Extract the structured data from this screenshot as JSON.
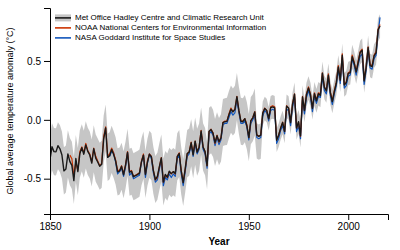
{
  "chart_data": {
    "type": "line",
    "xlabel": "Year",
    "ylabel": "Global average temperature anomaly (°C)",
    "x": [
      1850,
      1851,
      1852,
      1853,
      1854,
      1855,
      1856,
      1857,
      1858,
      1859,
      1860,
      1861,
      1862,
      1863,
      1864,
      1865,
      1866,
      1867,
      1868,
      1869,
      1870,
      1871,
      1872,
      1873,
      1874,
      1875,
      1876,
      1877,
      1878,
      1879,
      1880,
      1881,
      1882,
      1883,
      1884,
      1885,
      1886,
      1887,
      1888,
      1889,
      1890,
      1891,
      1892,
      1893,
      1894,
      1895,
      1896,
      1897,
      1898,
      1899,
      1900,
      1901,
      1902,
      1903,
      1904,
      1905,
      1906,
      1907,
      1908,
      1909,
      1910,
      1911,
      1912,
      1913,
      1914,
      1915,
      1916,
      1917,
      1918,
      1919,
      1920,
      1921,
      1922,
      1923,
      1924,
      1925,
      1926,
      1927,
      1928,
      1929,
      1930,
      1931,
      1932,
      1933,
      1934,
      1935,
      1936,
      1937,
      1938,
      1939,
      1940,
      1941,
      1942,
      1943,
      1944,
      1945,
      1946,
      1947,
      1948,
      1949,
      1950,
      1951,
      1952,
      1953,
      1954,
      1955,
      1956,
      1957,
      1958,
      1959,
      1960,
      1961,
      1962,
      1963,
      1964,
      1965,
      1966,
      1967,
      1968,
      1969,
      1970,
      1971,
      1972,
      1973,
      1974,
      1975,
      1976,
      1977,
      1978,
      1979,
      1980,
      1981,
      1982,
      1983,
      1984,
      1985,
      1986,
      1987,
      1988,
      1989,
      1990,
      1991,
      1992,
      1993,
      1994,
      1995,
      1996,
      1997,
      1998,
      1999,
      2000,
      2001,
      2002,
      2003,
      2004,
      2005,
      2006,
      2007,
      2008,
      2009,
      2010,
      2011,
      2012,
      2013,
      2014,
      2015,
      2016
    ],
    "series": [
      {
        "name": "Met Office Hadley Centre and Climatic Research Unit",
        "color": "#1a1a1a",
        "values": [
          -0.336,
          -0.229,
          -0.27,
          -0.272,
          -0.22,
          -0.246,
          -0.299,
          -0.434,
          -0.418,
          -0.289,
          -0.355,
          -0.387,
          -0.516,
          -0.329,
          -0.44,
          -0.289,
          -0.237,
          -0.292,
          -0.213,
          -0.268,
          -0.299,
          -0.367,
          -0.245,
          -0.325,
          -0.358,
          -0.395,
          -0.378,
          -0.164,
          -0.069,
          -0.319,
          -0.305,
          -0.251,
          -0.295,
          -0.349,
          -0.442,
          -0.435,
          -0.395,
          -0.467,
          -0.384,
          -0.276,
          -0.445,
          -0.437,
          -0.483,
          -0.474,
          -0.465,
          -0.453,
          -0.358,
          -0.3,
          -0.464,
          -0.36,
          -0.293,
          -0.314,
          -0.431,
          -0.507,
          -0.48,
          -0.399,
          -0.324,
          -0.528,
          -0.464,
          -0.487,
          -0.437,
          -0.457,
          -0.44,
          -0.455,
          -0.313,
          -0.286,
          -0.434,
          -0.533,
          -0.417,
          -0.287,
          -0.274,
          -0.195,
          -0.297,
          -0.181,
          -0.275,
          -0.232,
          -0.095,
          -0.232,
          -0.27,
          -0.389,
          -0.098,
          -0.083,
          -0.115,
          -0.193,
          -0.135,
          -0.185,
          -0.153,
          -0.023,
          -0.016,
          -0.013,
          0.044,
          0.091,
          0.067,
          0.089,
          0.197,
          0.08,
          -0.012,
          -0.016,
          0.01,
          -0.049,
          -0.151,
          -0.007,
          0.017,
          0.067,
          -0.128,
          -0.14,
          -0.13,
          0.055,
          0.097,
          0.08,
          0.009,
          0.103,
          0.11,
          0.102,
          -0.174,
          -0.131,
          -0.07,
          -0.022,
          -0.098,
          0.115,
          0.1,
          -0.024,
          0.134,
          0.218,
          -0.069,
          -0.016,
          -0.135,
          0.194,
          0.079,
          0.214,
          0.271,
          0.214,
          0.098,
          0.222,
          0.161,
          0.222,
          0.207,
          0.396,
          0.275,
          0.246,
          0.379,
          0.231,
          0.155,
          0.239,
          0.311,
          0.449,
          0.337,
          0.549,
          0.296,
          0.316,
          0.394,
          0.4,
          0.537,
          0.481,
          0.407,
          0.487,
          0.572,
          0.591,
          0.33,
          0.444,
          0.614,
          0.461,
          0.452,
          0.543,
          0.568,
          0.763,
          0.797
        ],
        "upper": [
          -0.136,
          -0.029,
          -0.07,
          -0.072,
          -0.02,
          -0.046,
          -0.099,
          -0.234,
          -0.218,
          -0.089,
          -0.155,
          -0.187,
          -0.316,
          -0.129,
          -0.24,
          -0.089,
          -0.037,
          -0.092,
          -0.013,
          -0.068,
          -0.099,
          -0.167,
          -0.045,
          -0.125,
          -0.158,
          -0.195,
          -0.178,
          0.036,
          0.131,
          -0.119,
          -0.105,
          -0.051,
          -0.095,
          -0.149,
          -0.242,
          -0.235,
          -0.195,
          -0.267,
          -0.184,
          -0.076,
          -0.245,
          -0.237,
          -0.283,
          -0.274,
          -0.265,
          -0.253,
          -0.158,
          -0.1,
          -0.264,
          -0.16,
          -0.093,
          -0.114,
          -0.231,
          -0.307,
          -0.28,
          -0.199,
          -0.124,
          -0.328,
          -0.264,
          -0.287,
          -0.237,
          -0.257,
          -0.24,
          -0.255,
          -0.113,
          -0.086,
          -0.234,
          -0.333,
          -0.217,
          -0.087,
          -0.074,
          0.005,
          -0.097,
          0.019,
          -0.075,
          -0.032,
          0.105,
          -0.032,
          -0.07,
          -0.189,
          0.102,
          0.117,
          0.085,
          0.007,
          0.065,
          0.015,
          0.047,
          0.177,
          0.184,
          0.187,
          0.244,
          0.291,
          0.267,
          0.289,
          0.397,
          0.28,
          0.188,
          0.184,
          0.21,
          0.151,
          0.049,
          0.193,
          0.217,
          0.267,
          -0.028,
          -0.04,
          -0.03,
          0.155,
          0.197,
          0.18,
          0.109,
          0.203,
          0.21,
          0.202,
          -0.074,
          -0.031,
          0.03,
          0.078,
          0.0,
          0.215,
          0.2,
          0.076,
          0.234,
          0.318,
          0.031,
          0.084,
          0.0,
          0.294,
          0.179,
          0.314,
          0.371,
          0.314,
          0.198,
          0.322,
          0.261,
          0.322,
          0.307,
          0.496,
          0.375,
          0.346,
          0.479,
          0.331,
          0.255,
          0.339,
          0.411,
          0.549,
          0.437,
          0.649,
          0.396,
          0.416,
          0.494,
          0.5,
          0.637,
          0.581,
          0.507,
          0.587,
          0.672,
          0.691,
          0.43,
          0.544,
          0.714,
          0.561,
          0.552,
          0.643,
          0.668,
          0.863,
          0.897
        ],
        "lower": [
          -0.536,
          -0.429,
          -0.47,
          -0.472,
          -0.42,
          -0.446,
          -0.499,
          -0.634,
          -0.618,
          -0.489,
          -0.555,
          -0.587,
          -0.716,
          -0.529,
          -0.64,
          -0.489,
          -0.437,
          -0.492,
          -0.413,
          -0.468,
          -0.499,
          -0.567,
          -0.445,
          -0.525,
          -0.558,
          -0.595,
          -0.578,
          -0.364,
          -0.269,
          -0.519,
          -0.505,
          -0.451,
          -0.495,
          -0.549,
          -0.642,
          -0.635,
          -0.595,
          -0.667,
          -0.584,
          -0.476,
          -0.645,
          -0.637,
          -0.683,
          -0.674,
          -0.665,
          -0.653,
          -0.558,
          -0.5,
          -0.664,
          -0.56,
          -0.493,
          -0.514,
          -0.631,
          -0.707,
          -0.68,
          -0.599,
          -0.524,
          -0.728,
          -0.664,
          -0.687,
          -0.637,
          -0.657,
          -0.64,
          -0.655,
          -0.513,
          -0.486,
          -0.634,
          -0.733,
          -0.617,
          -0.487,
          -0.474,
          -0.395,
          -0.497,
          -0.381,
          -0.475,
          -0.432,
          -0.295,
          -0.432,
          -0.47,
          -0.589,
          -0.298,
          -0.283,
          -0.315,
          -0.393,
          -0.335,
          -0.385,
          -0.353,
          -0.223,
          -0.216,
          -0.213,
          -0.156,
          -0.109,
          -0.133,
          -0.111,
          -0.003,
          -0.12,
          -0.212,
          -0.216,
          -0.19,
          -0.249,
          -0.351,
          -0.207,
          -0.183,
          -0.133,
          -0.328,
          -0.34,
          -0.33,
          -0.045,
          -0.003,
          -0.02,
          -0.091,
          0.003,
          0.01,
          0.002,
          -0.274,
          -0.231,
          -0.17,
          -0.122,
          -0.198,
          0.015,
          0.0,
          -0.124,
          0.034,
          0.118,
          -0.169,
          -0.116,
          -0.235,
          0.094,
          -0.021,
          0.114,
          0.171,
          0.114,
          0.002,
          0.122,
          0.061,
          0.122,
          0.107,
          0.296,
          0.175,
          0.146,
          0.279,
          0.131,
          0.055,
          0.139,
          0.211,
          0.349,
          0.237,
          0.449,
          0.196,
          0.216,
          0.294,
          0.3,
          0.437,
          0.381,
          0.307,
          0.387,
          0.472,
          0.491,
          0.23,
          0.344,
          0.514,
          0.361,
          0.352,
          0.443,
          0.468,
          0.663,
          0.697
        ]
      },
      {
        "name": "NOAA National Centers for Environmental Information",
        "color": "#cc3300",
        "values": [
          null,
          null,
          null,
          null,
          null,
          null,
          null,
          null,
          null,
          null,
          -0.3,
          -0.33,
          -0.48,
          -0.36,
          -0.43,
          -0.27,
          -0.23,
          -0.28,
          -0.2,
          -0.26,
          -0.29,
          -0.36,
          -0.24,
          -0.31,
          -0.35,
          -0.39,
          -0.37,
          -0.14,
          -0.06,
          -0.31,
          -0.29,
          -0.24,
          -0.28,
          -0.34,
          -0.43,
          -0.43,
          -0.39,
          -0.46,
          -0.38,
          -0.27,
          -0.44,
          -0.43,
          -0.48,
          -0.47,
          -0.46,
          -0.45,
          -0.35,
          -0.29,
          -0.46,
          -0.35,
          -0.29,
          -0.31,
          -0.43,
          -0.51,
          -0.49,
          -0.4,
          -0.32,
          -0.53,
          -0.47,
          -0.49,
          -0.44,
          -0.46,
          -0.44,
          -0.46,
          -0.31,
          -0.28,
          -0.43,
          -0.53,
          -0.42,
          -0.29,
          -0.27,
          -0.19,
          -0.29,
          -0.18,
          -0.27,
          -0.23,
          -0.09,
          -0.23,
          -0.27,
          -0.39,
          -0.1,
          -0.08,
          -0.11,
          -0.2,
          -0.13,
          -0.19,
          -0.15,
          -0.02,
          -0.01,
          -0.01,
          0.05,
          0.1,
          0.07,
          0.09,
          0.2,
          0.08,
          -0.01,
          -0.01,
          0.01,
          -0.04,
          -0.15,
          -0.01,
          0.02,
          0.07,
          -0.13,
          -0.14,
          -0.13,
          0.06,
          0.1,
          0.08,
          0.01,
          0.11,
          0.12,
          0.11,
          -0.17,
          -0.13,
          -0.07,
          -0.02,
          -0.1,
          0.12,
          0.1,
          -0.02,
          0.14,
          0.22,
          -0.07,
          -0.02,
          -0.14,
          0.2,
          0.08,
          0.22,
          0.28,
          0.22,
          0.1,
          0.23,
          0.17,
          0.23,
          0.22,
          0.4,
          0.28,
          0.25,
          0.39,
          0.24,
          0.16,
          0.25,
          0.32,
          0.46,
          0.34,
          0.56,
          0.3,
          0.32,
          0.4,
          0.41,
          0.55,
          0.49,
          0.41,
          0.5,
          0.58,
          0.6,
          0.34,
          0.45,
          0.62,
          0.47,
          0.46,
          0.55,
          0.58,
          0.77,
          0.81
        ]
      },
      {
        "name": "NASA Goddard Institute for Space Studies",
        "color": "#1155bb",
        "values": [
          null,
          null,
          null,
          null,
          null,
          null,
          null,
          null,
          null,
          null,
          null,
          null,
          null,
          null,
          null,
          null,
          null,
          null,
          null,
          null,
          null,
          null,
          null,
          null,
          null,
          null,
          null,
          null,
          null,
          null,
          -0.31,
          -0.27,
          -0.28,
          -0.36,
          -0.46,
          -0.44,
          -0.41,
          -0.48,
          -0.4,
          -0.28,
          -0.47,
          -0.45,
          -0.5,
          -0.49,
          -0.48,
          -0.47,
          -0.36,
          -0.3,
          -0.49,
          -0.37,
          -0.29,
          -0.33,
          -0.45,
          -0.53,
          -0.51,
          -0.42,
          -0.34,
          -0.56,
          -0.49,
          -0.51,
          -0.46,
          -0.49,
          -0.46,
          -0.48,
          -0.33,
          -0.3,
          -0.46,
          -0.56,
          -0.44,
          -0.31,
          -0.29,
          -0.21,
          -0.31,
          -0.2,
          -0.29,
          -0.25,
          -0.11,
          -0.25,
          -0.29,
          -0.41,
          -0.12,
          -0.1,
          -0.13,
          -0.22,
          -0.15,
          -0.21,
          -0.17,
          -0.04,
          -0.03,
          -0.03,
          0.02,
          0.07,
          0.04,
          0.06,
          0.17,
          0.06,
          -0.03,
          -0.03,
          -0.01,
          -0.06,
          -0.17,
          -0.03,
          0.0,
          0.04,
          -0.15,
          -0.16,
          -0.15,
          0.03,
          0.08,
          0.06,
          -0.01,
          0.08,
          0.09,
          0.08,
          -0.2,
          -0.16,
          -0.09,
          -0.05,
          -0.12,
          0.09,
          0.08,
          -0.05,
          0.11,
          0.19,
          -0.1,
          -0.05,
          -0.16,
          0.17,
          0.05,
          0.19,
          0.25,
          0.19,
          0.07,
          0.2,
          0.14,
          0.2,
          0.19,
          0.37,
          0.25,
          0.22,
          0.36,
          0.21,
          0.13,
          0.22,
          0.29,
          0.43,
          0.31,
          0.53,
          0.27,
          0.29,
          0.37,
          0.38,
          0.52,
          0.46,
          0.38,
          0.47,
          0.54,
          0.56,
          0.3,
          0.42,
          0.59,
          0.44,
          0.43,
          0.52,
          0.55,
          0.74,
          0.87
        ]
      }
    ],
    "xlim": [
      1850,
      2020
    ],
    "ylim": [
      -0.8,
      0.95
    ],
    "xticks": [
      1850,
      1900,
      1950,
      2000
    ],
    "yticks": [
      -0.5,
      {
        "value": 0.0,
        "label": "0.0"
      },
      0.5
    ],
    "grid": false,
    "legend": "upper-left"
  }
}
